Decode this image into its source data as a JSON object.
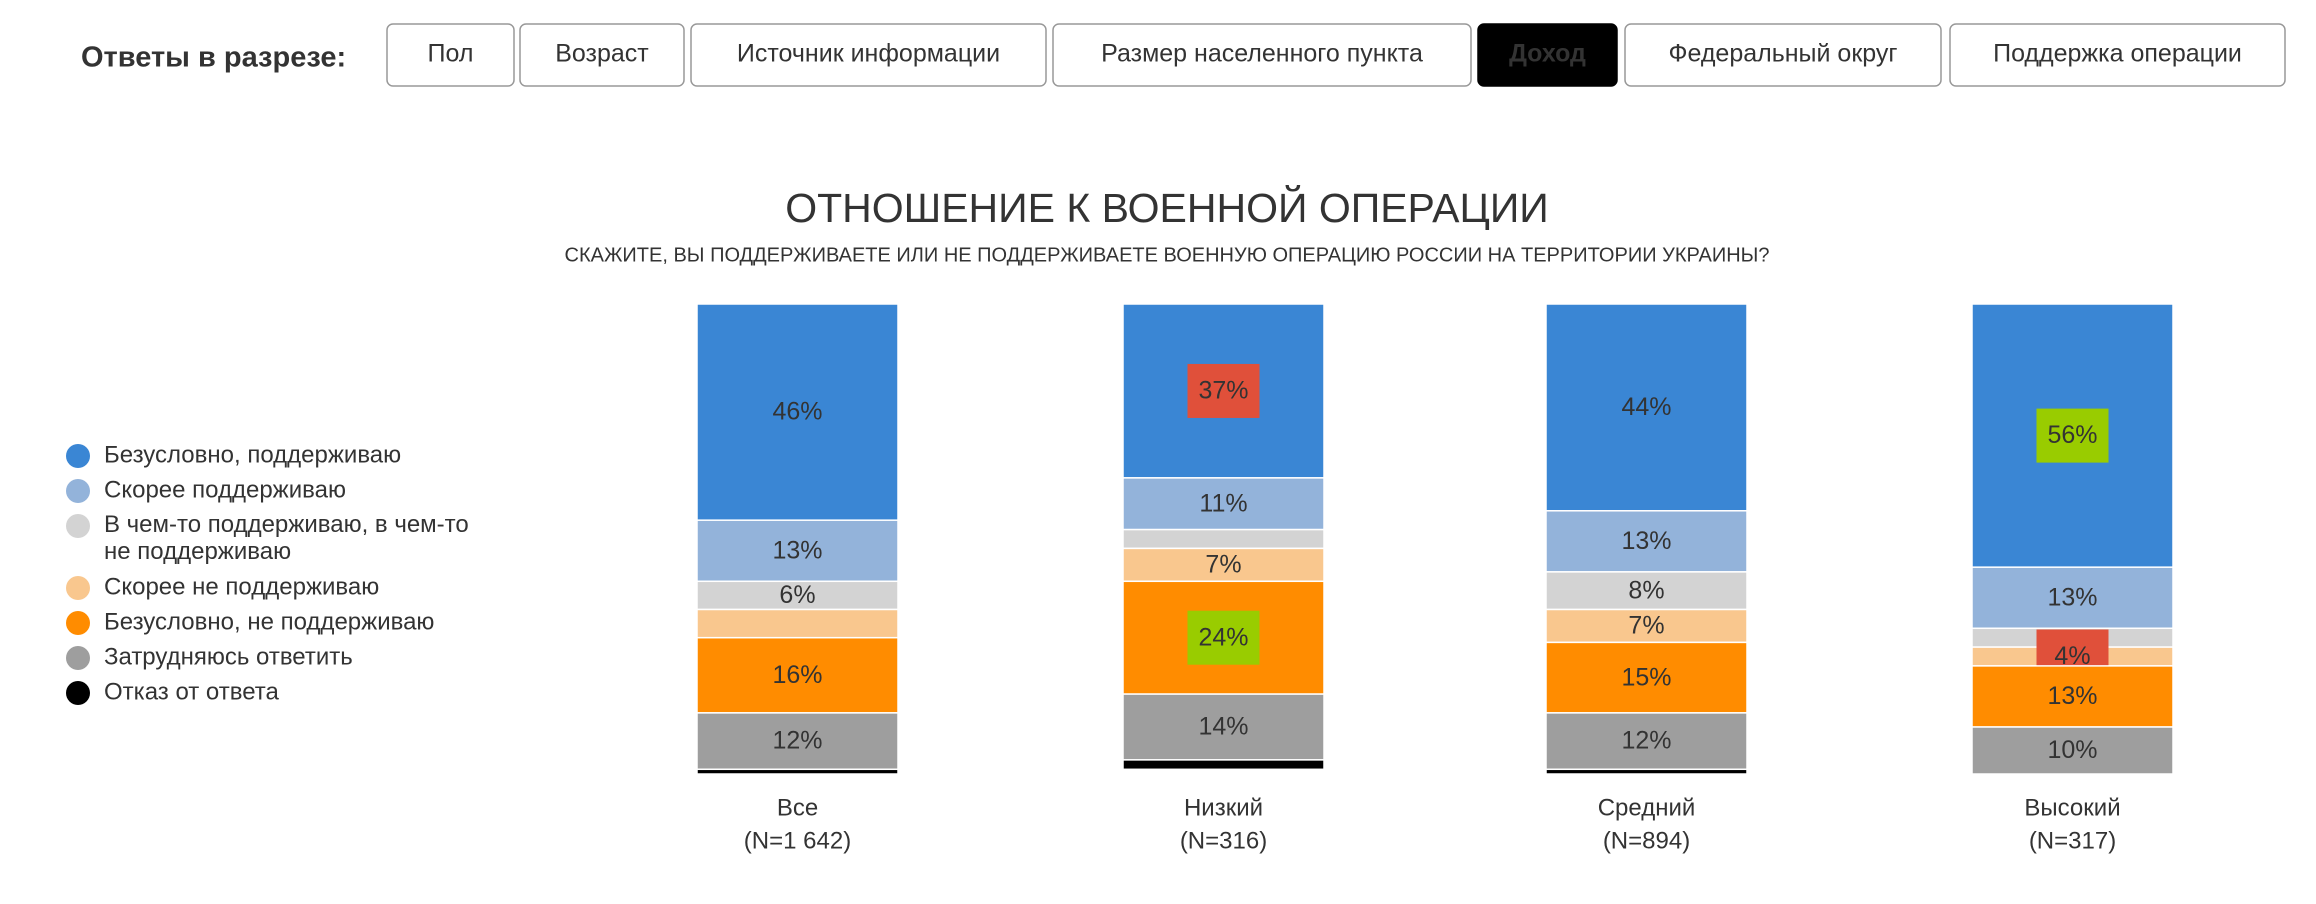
{
  "filters": {
    "label": "Ответы в разрезе:",
    "tabs": [
      "Пол",
      "Возраст",
      "Источник информации",
      "Размер населенного пункта",
      "Доход",
      "Федеральный округ",
      "Поддержка операции"
    ],
    "active": 4
  },
  "chart_data": {
    "type": "stacked_bar",
    "title": "ОТНОШЕНИЕ К ВОЕННОЙ ОПЕРАЦИИ",
    "subtitle": "СКАЖИТЕ, ВЫ ПОДДЕРЖИВАЕТЕ ИЛИ НЕ ПОДДЕРЖИВАЕТЕ ВОЕННУЮ ОПЕРАЦИЮ РОССИИ НА ТЕРРИТОРИИ УКРАИНЫ?",
    "categories": [
      "Все",
      "Низкий",
      "Средний",
      "Высокий"
    ],
    "sample_sizes": [
      "(N=1 642)",
      "(N=316)",
      "(N=894)",
      "(N=317)"
    ],
    "ylim": [
      0,
      100
    ],
    "legend_position": "left",
    "series": [
      {
        "name": "Безусловно, поддерживаю",
        "color": "#3a86d4",
        "label_color": "#ffffff",
        "values": [
          46,
          37,
          44,
          56
        ],
        "value_labels": [
          "46%",
          "37%",
          "44%",
          "56%"
        ],
        "label_backgrounds": [
          null,
          "#e0503a",
          null,
          "#99cc00"
        ]
      },
      {
        "name": "Скорее поддерживаю",
        "color": "#93b3da",
        "label_color": "#ffffff",
        "values": [
          13,
          11,
          13,
          13
        ],
        "value_labels": [
          "13%",
          "11%",
          "13%",
          "13%"
        ],
        "label_backgrounds": [
          null,
          null,
          null,
          null
        ]
      },
      {
        "name": "В чем-то поддерживаю, в чем-то не поддерживаю",
        "color": "#d3d3d3",
        "label_color": "#333333",
        "values": [
          6,
          4,
          8,
          4
        ],
        "value_labels": [
          "6%",
          null,
          "8%",
          null
        ],
        "label_backgrounds": [
          null,
          null,
          null,
          null
        ]
      },
      {
        "name": "Скорее не поддерживаю",
        "color": "#f9c78e",
        "label_color": "#333333",
        "values": [
          6,
          7,
          7,
          4
        ],
        "value_labels": [
          null,
          "7%",
          "7%",
          "4%"
        ],
        "label_backgrounds": [
          null,
          null,
          null,
          "#e0503a"
        ]
      },
      {
        "name": "Безусловно, не поддерживаю",
        "color": "#ff8c00",
        "label_color": "#ffffff",
        "values": [
          16,
          24,
          15,
          13
        ],
        "value_labels": [
          "16%",
          "24%",
          "15%",
          "13%"
        ],
        "label_backgrounds": [
          null,
          "#99cc00",
          null,
          null
        ]
      },
      {
        "name": "Затрудняюсь ответить",
        "color": "#9e9e9e",
        "label_color": "#ffffff",
        "values": [
          12,
          14,
          12,
          10
        ],
        "value_labels": [
          "12%",
          "14%",
          "12%",
          "10%"
        ],
        "label_backgrounds": [
          null,
          null,
          null,
          null
        ]
      },
      {
        "name": "Отказ от ответа",
        "color": "#000000",
        "label_color": "#ffffff",
        "values": [
          1,
          2,
          1,
          0
        ],
        "value_labels": [
          null,
          null,
          null,
          null
        ],
        "label_backgrounds": [
          null,
          null,
          null,
          null
        ]
      }
    ]
  }
}
